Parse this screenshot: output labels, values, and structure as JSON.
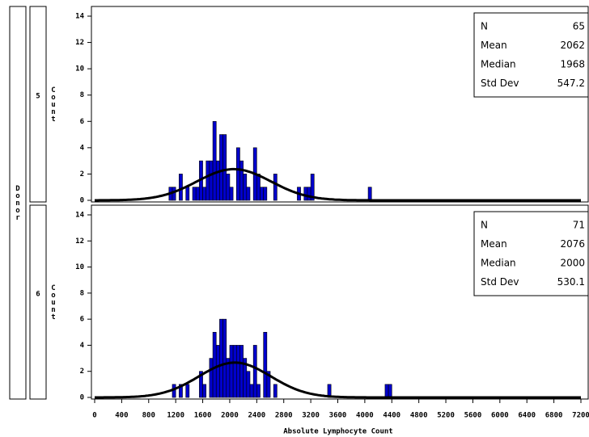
{
  "row_header": "Donor",
  "chart_data": [
    {
      "type": "histogram",
      "panel_label": "5",
      "y_label": "Count",
      "bins": [
        1100,
        1150,
        1200,
        1250,
        1300,
        1350,
        1400,
        1450,
        1500,
        1550,
        1600,
        1650,
        1700,
        1750,
        1800,
        1850,
        1900,
        1950,
        2000,
        2050,
        2100,
        2150,
        2200,
        2250,
        2300,
        2350,
        2400,
        2450,
        2500,
        2550,
        2600,
        2650,
        2700,
        2750,
        2800,
        2850,
        2900,
        2950,
        3000,
        3050,
        3100,
        3150,
        3200,
        3250,
        3300,
        3350,
        3400,
        3450,
        3500,
        3550,
        3600,
        3650,
        3700,
        3750,
        3800,
        3850,
        3900,
        3950,
        4000,
        4050,
        4100,
        4150,
        4200,
        4250,
        4300,
        4350,
        4400
      ],
      "values": [
        1,
        1,
        0,
        2,
        0,
        1,
        0,
        1,
        1,
        3,
        1,
        3,
        3,
        6,
        3,
        5,
        5,
        2,
        1,
        0,
        4,
        3,
        2,
        1,
        0,
        4,
        2,
        1,
        1,
        0,
        0,
        2,
        0,
        0,
        0,
        0,
        0,
        0,
        1,
        0,
        1,
        1,
        2,
        0,
        0,
        0,
        0,
        0,
        0,
        0,
        0,
        0,
        0,
        0,
        0,
        0,
        0,
        0,
        0,
        1,
        0,
        0,
        0,
        0,
        0,
        0
      ],
      "color": "#0000cc",
      "stats": [
        {
          "label": "N",
          "value": 65
        },
        {
          "label": "Mean",
          "value": 2062
        },
        {
          "label": "Median",
          "value": 1968
        },
        {
          "label": "Std Dev",
          "value": 547.2
        }
      ],
      "xlim": [
        0,
        7200
      ],
      "ylim": [
        0,
        14
      ],
      "yticks": [
        0,
        2,
        4,
        6,
        8,
        10,
        12,
        14
      ]
    },
    {
      "type": "histogram",
      "panel_label": "6",
      "y_label": "Count",
      "x_label": "Absolute Lymphocyte Count",
      "bins": [
        1100,
        1150,
        1200,
        1250,
        1300,
        1350,
        1400,
        1450,
        1500,
        1550,
        1600,
        1650,
        1700,
        1750,
        1800,
        1850,
        1900,
        1950,
        2000,
        2050,
        2100,
        2150,
        2200,
        2250,
        2300,
        2350,
        2400,
        2450,
        2500,
        2550,
        2600,
        2650,
        2700,
        2750,
        2800,
        2850,
        2900,
        2950,
        3000,
        3050,
        3100,
        3150,
        3200,
        3250,
        3300,
        3350,
        3400,
        3450,
        3500,
        3550,
        3600,
        3650,
        3700,
        3750,
        3800,
        3850,
        3900,
        3950,
        4000,
        4050,
        4100,
        4150,
        4200,
        4250,
        4300,
        4350,
        4400
      ],
      "values": [
        0,
        1,
        0,
        1,
        0,
        1,
        0,
        0,
        0,
        2,
        1,
        0,
        3,
        5,
        4,
        6,
        6,
        3,
        4,
        4,
        4,
        4,
        3,
        2,
        1,
        4,
        1,
        0,
        5,
        2,
        0,
        1,
        0,
        0,
        0,
        0,
        0,
        0,
        0,
        0,
        0,
        0,
        0,
        0,
        0,
        0,
        0,
        1,
        0,
        0,
        0,
        0,
        0,
        0,
        0,
        0,
        0,
        0,
        0,
        0,
        0,
        0,
        0,
        0,
        1,
        1
      ],
      "color": "#0000cc",
      "stats": [
        {
          "label": "N",
          "value": 71
        },
        {
          "label": "Mean",
          "value": 2076
        },
        {
          "label": "Median",
          "value": 2000
        },
        {
          "label": "Std Dev",
          "value": 530.1
        }
      ],
      "xlim": [
        0,
        7200
      ],
      "ylim": [
        0,
        14
      ],
      "yticks": [
        0,
        2,
        4,
        6,
        8,
        10,
        12,
        14
      ],
      "xticks": [
        0,
        400,
        800,
        1200,
        1600,
        2000,
        2400,
        2800,
        3200,
        3600,
        4000,
        4400,
        4800,
        5200,
        5600,
        6000,
        6400,
        6800,
        7200
      ]
    }
  ]
}
